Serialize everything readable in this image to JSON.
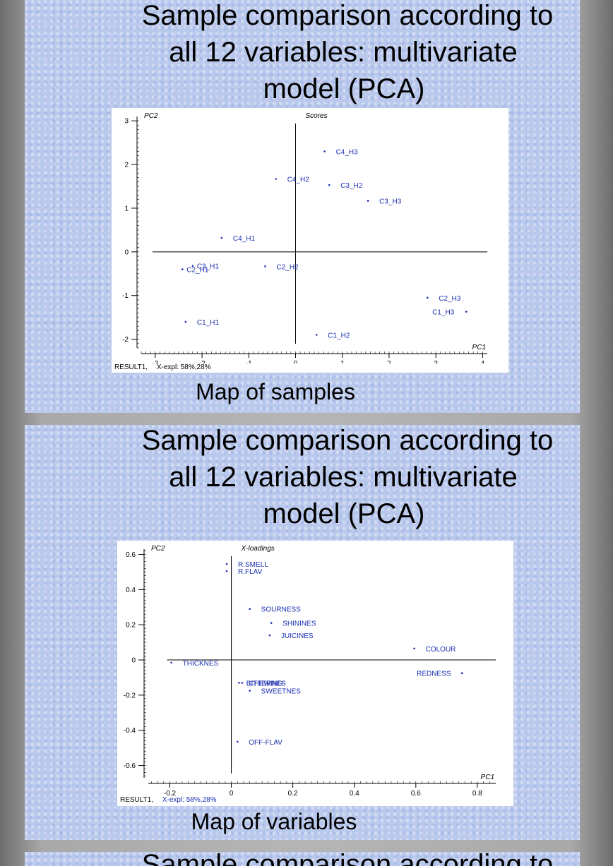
{
  "slides": [
    {
      "title_lines": [
        "Sample comparison according to",
        "all 12 variables: multivariate",
        "model (PCA)"
      ],
      "caption": "Map of samples",
      "footer": {
        "result": "RESULT1,",
        "expl": "X-expl: 58%,28%"
      }
    },
    {
      "title_lines": [
        "Sample comparison according to",
        "all 12 variables: multivariate",
        "model (PCA)"
      ],
      "caption": "Map of variables",
      "footer": {
        "result": "RESULT1,",
        "expl": "X-expl: 58%,28%"
      }
    },
    {
      "title_lines": [
        "Sample comparison according to"
      ]
    }
  ],
  "chart_data": [
    {
      "type": "scatter",
      "title": "Scores",
      "xlabel": "PC1",
      "ylabel": "PC2",
      "xlim": [
        -3.3,
        4.1
      ],
      "ylim": [
        -2.2,
        3.1
      ],
      "xticks": [
        -3,
        -2,
        -1,
        0,
        1,
        2,
        3,
        4
      ],
      "yticks": [
        -2,
        -1,
        0,
        1,
        2,
        3
      ],
      "axis_origin": true,
      "point_color": "#1a2fb0",
      "points": [
        {
          "label": "C4_H3",
          "x": 0.62,
          "y": 2.3
        },
        {
          "label": "C4_H2",
          "x": -0.42,
          "y": 1.67
        },
        {
          "label": "C3_H2",
          "x": 0.72,
          "y": 1.53
        },
        {
          "label": "C3_H3",
          "x": 1.55,
          "y": 1.17
        },
        {
          "label": "C4_H1",
          "x": -1.58,
          "y": 0.32
        },
        {
          "label": "C3_H1",
          "x": -2.2,
          "y": -0.32
        },
        {
          "label": "C2_H1",
          "x": -2.42,
          "y": -0.4
        },
        {
          "label": "C2_H2",
          "x": -0.65,
          "y": -0.33
        },
        {
          "label": "C2_H3",
          "x": 2.82,
          "y": -1.05
        },
        {
          "label": "C1_H3",
          "x": 3.65,
          "y": -1.37
        },
        {
          "label": "C1_H1",
          "x": -2.35,
          "y": -1.6
        },
        {
          "label": "C1_H2",
          "x": 0.45,
          "y": -1.9
        }
      ]
    },
    {
      "type": "scatter",
      "title": "X-loadings",
      "xlabel": "PC1",
      "ylabel": "PC2",
      "xlim": [
        -0.27,
        0.86
      ],
      "ylim": [
        -0.67,
        0.63
      ],
      "xticks": [
        -0.2,
        0,
        0.2,
        0.4,
        0.6,
        0.8
      ],
      "yticks": [
        -0.6,
        -0.4,
        -0.2,
        0,
        0.2,
        0.4,
        0.6
      ],
      "axis_origin": true,
      "point_color": "#1a2fb0",
      "points": [
        {
          "label": "R.SMELL",
          "x": -0.015,
          "y": 0.545
        },
        {
          "label": "R.FLAV",
          "x": -0.015,
          "y": 0.505
        },
        {
          "label": "SOURNESS",
          "x": 0.06,
          "y": 0.29
        },
        {
          "label": "SHININES",
          "x": 0.13,
          "y": 0.21
        },
        {
          "label": "JUICINES",
          "x": 0.125,
          "y": 0.14
        },
        {
          "label": "COLOUR",
          "x": 0.595,
          "y": 0.065
        },
        {
          "label": "THICKNES",
          "x": -0.195,
          "y": -0.015
        },
        {
          "label": "REDNESS",
          "x": 0.75,
          "y": -0.075
        },
        {
          "label": "CHEWING",
          "x": 0.025,
          "y": -0.13
        },
        {
          "label": "BITTERNES",
          "x": 0.035,
          "y": -0.13
        },
        {
          "label": "SWEETNES",
          "x": 0.06,
          "y": -0.175
        },
        {
          "label": "OFF-FLAV",
          "x": 0.02,
          "y": -0.465
        }
      ]
    }
  ]
}
